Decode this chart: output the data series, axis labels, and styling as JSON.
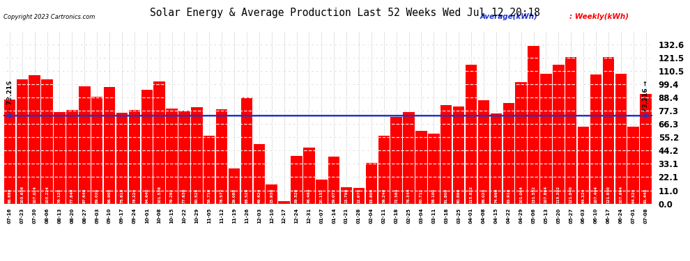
{
  "title": "Solar Energy & Average Production Last 52 Weeks Wed Jul 12 20:18",
  "copyright": "Copyright 2023 Cartronics.com",
  "legend_avg": "Average(kWh)",
  "legend_weekly": "Weekly(kWh)",
  "average_value": 73.216,
  "bar_color": "#ff0000",
  "avg_line_color": "#2233cc",
  "background_color": "#ffffff",
  "grid_color": "#bbbbbb",
  "ylim_max": 143.5,
  "yticks": [
    0.0,
    11.0,
    22.1,
    33.1,
    44.2,
    55.2,
    66.3,
    77.3,
    88.4,
    99.4,
    110.5,
    121.5,
    132.6
  ],
  "categories": [
    "07-16",
    "07-23",
    "07-30",
    "08-06",
    "08-13",
    "08-20",
    "08-27",
    "09-03",
    "09-10",
    "09-17",
    "09-24",
    "10-01",
    "10-08",
    "10-15",
    "10-22",
    "10-29",
    "11-05",
    "11-12",
    "11-19",
    "11-26",
    "12-03",
    "12-10",
    "12-17",
    "12-24",
    "12-31",
    "01-07",
    "01-14",
    "01-21",
    "01-28",
    "02-04",
    "02-11",
    "02-18",
    "02-25",
    "03-04",
    "03-11",
    "03-18",
    "03-25",
    "04-01",
    "04-08",
    "04-15",
    "04-22",
    "04-29",
    "05-06",
    "05-13",
    "05-20",
    "05-27",
    "06-03",
    "06-10",
    "06-17",
    "06-24",
    "07-01",
    "07-08"
  ],
  "values": [
    86.68,
    103.656,
    107.024,
    103.224,
    76.128,
    77.84,
    97.648,
    89.02,
    96.908,
    75.616,
    78.224,
    94.64,
    101.536,
    79.292,
    77.636,
    80.528,
    56.716,
    78.572,
    29.088,
    88.528,
    49.624,
    15.936,
    1.928,
    39.528,
    46.464,
    20.152,
    39.072,
    13.796,
    12.976,
    33.806,
    56.248,
    72.384,
    76.344,
    60.712,
    58.1,
    81.8,
    80.896,
    115.832,
    86.024,
    74.96,
    83.916,
    101.064,
    131.552,
    107.864,
    115.392,
    121.84,
    64.324,
    107.404,
    121.84,
    107.864,
    64.324,
    91.448
  ]
}
